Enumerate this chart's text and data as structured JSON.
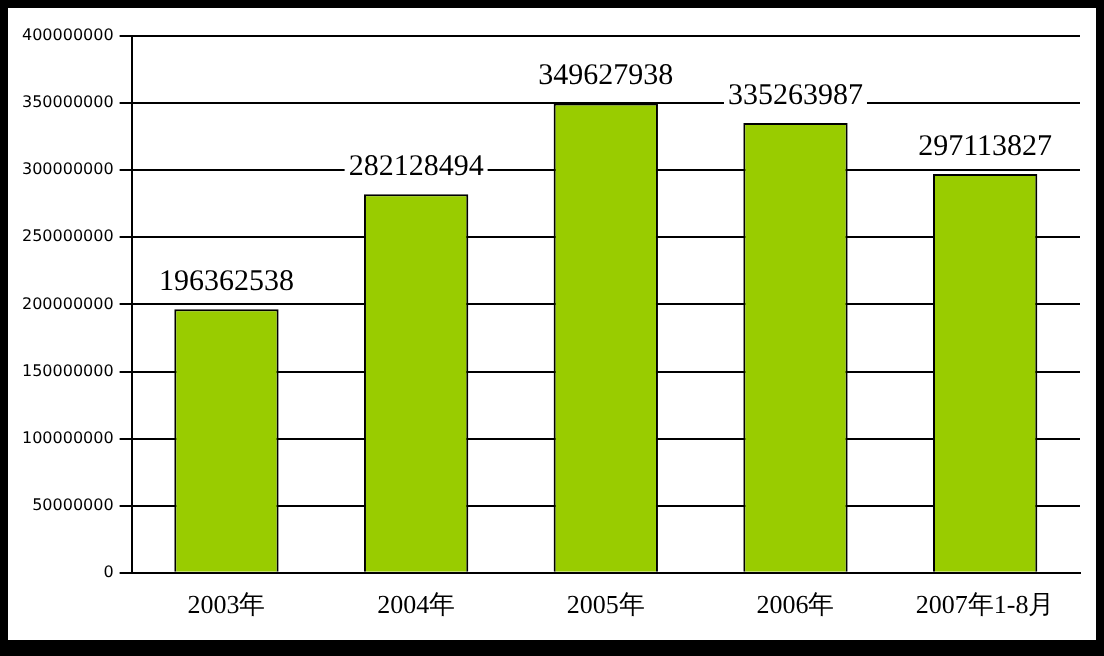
{
  "chart_data": {
    "type": "bar",
    "categories": [
      "2003年",
      "2004年",
      "2005年",
      "2006年",
      "2007年1-8月"
    ],
    "values": [
      196362538,
      282128494,
      349627938,
      335263987,
      297113827
    ],
    "color": "#99cc00",
    "data_labels": true,
    "grid": "y",
    "legend": false,
    "ylim": [
      0,
      400000000
    ],
    "yticks": [
      0,
      50000000,
      100000000,
      150000000,
      200000000,
      250000000,
      300000000,
      350000000,
      400000000
    ]
  }
}
